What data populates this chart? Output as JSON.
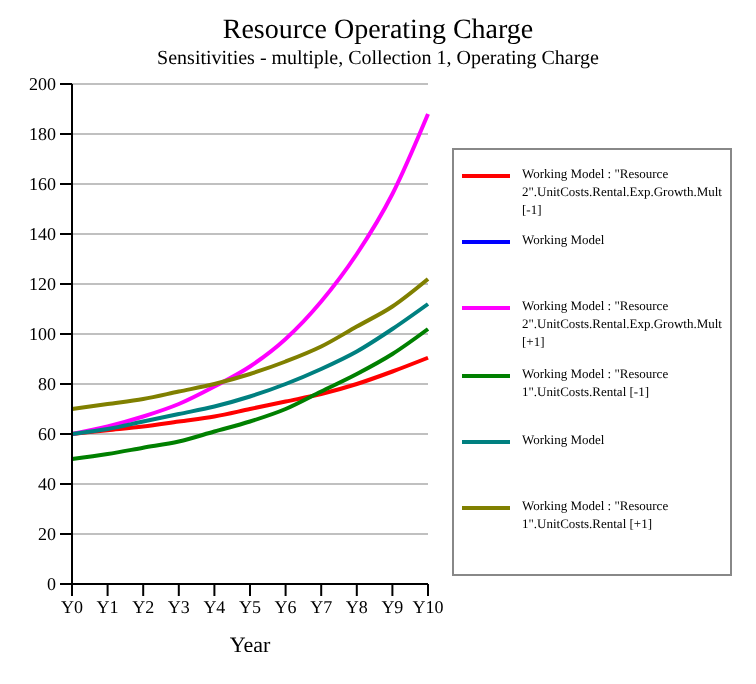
{
  "chart_data": {
    "type": "line",
    "title": "Resource Operating Charge",
    "subtitle": "Sensitivities - multiple, Collection 1, Operating Charge",
    "xlabel": "Year",
    "categories": [
      "Y0",
      "Y1",
      "Y2",
      "Y3",
      "Y4",
      "Y5",
      "Y6",
      "Y7",
      "Y8",
      "Y9",
      "Y10"
    ],
    "series": [
      {
        "name": "Working Model : \"Resource 2\".UnitCosts.Rental.Exp.Growth.Mult [-1]",
        "color": "#ff0000",
        "values": [
          60,
          61.5,
          63,
          65,
          67,
          70,
          73,
          76,
          80,
          85,
          90.5
        ]
      },
      {
        "name": "Working Model",
        "color": "#0000ff",
        "values": [
          null,
          null,
          null,
          null,
          null,
          null,
          null,
          null,
          null,
          null,
          null
        ]
      },
      {
        "name": "Working Model : \"Resource 2\".UnitCosts.Rental.Exp.Growth.Mult [+1]",
        "color": "#ff00ff",
        "values": [
          60,
          63,
          67,
          72,
          79,
          87,
          98,
          113,
          132,
          156,
          188
        ]
      },
      {
        "name": "Working Model : \"Resource 1\".UnitCosts.Rental [-1]",
        "color": "#008000",
        "values": [
          50,
          52,
          54.5,
          57,
          61,
          65,
          70,
          77,
          84,
          92,
          102
        ]
      },
      {
        "name": "Working Model",
        "color": "#008080",
        "values": [
          60,
          62,
          65,
          68,
          71,
          75,
          80,
          86,
          93,
          102,
          112
        ]
      },
      {
        "name": "Working Model : \"Resource 1\".UnitCosts.Rental [+1]",
        "color": "#808000",
        "values": [
          70,
          72,
          74,
          77,
          80,
          84,
          89,
          95,
          103,
          111,
          122
        ]
      }
    ],
    "ylim": [
      0,
      200
    ],
    "yticks": [
      0,
      20,
      40,
      60,
      80,
      100,
      120,
      140,
      160,
      180,
      200
    ],
    "grid": "y",
    "legend": "right",
    "marker": "none",
    "line_style": "solid"
  }
}
